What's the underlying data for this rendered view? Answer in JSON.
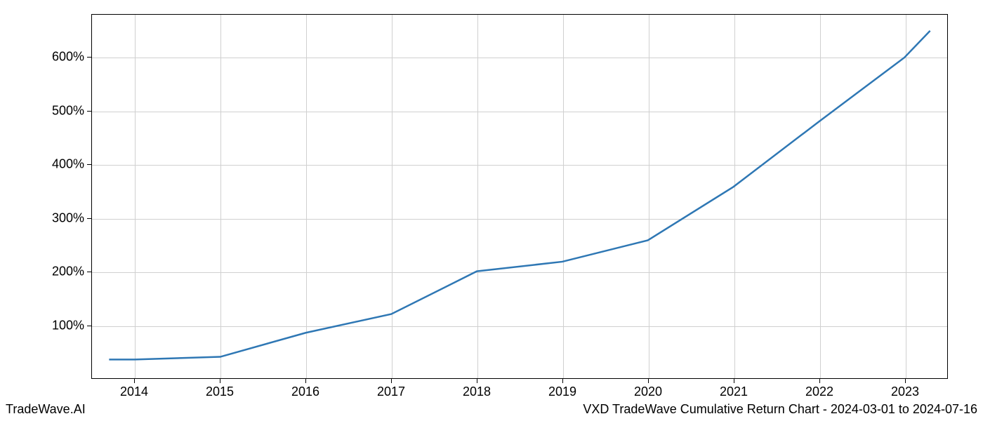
{
  "chart": {
    "type": "line",
    "x_values": [
      2013.7,
      2014,
      2015,
      2016,
      2017,
      2018,
      2019,
      2020,
      2021,
      2022,
      2023,
      2023.3
    ],
    "y_values": [
      35,
      35,
      40,
      85,
      120,
      200,
      218,
      258,
      358,
      480,
      600,
      650
    ],
    "line_color": "#2e77b4",
    "line_width": 2.5,
    "background_color": "#ffffff",
    "grid_color": "#d0d0d0",
    "border_color": "#000000",
    "x_ticks": [
      2014,
      2015,
      2016,
      2017,
      2018,
      2019,
      2020,
      2021,
      2022,
      2023
    ],
    "x_tick_labels": [
      "2014",
      "2015",
      "2016",
      "2017",
      "2018",
      "2019",
      "2020",
      "2021",
      "2022",
      "2023"
    ],
    "y_ticks": [
      100,
      200,
      300,
      400,
      500,
      600
    ],
    "y_tick_labels": [
      "100%",
      "200%",
      "300%",
      "400%",
      "500%",
      "600%"
    ],
    "xlim": [
      2013.5,
      2023.5
    ],
    "ylim": [
      0,
      680
    ],
    "tick_fontsize": 18,
    "footer_fontsize": 18
  },
  "footer": {
    "left": "TradeWave.AI",
    "right": "VXD TradeWave Cumulative Return Chart - 2024-03-01 to 2024-07-16"
  }
}
